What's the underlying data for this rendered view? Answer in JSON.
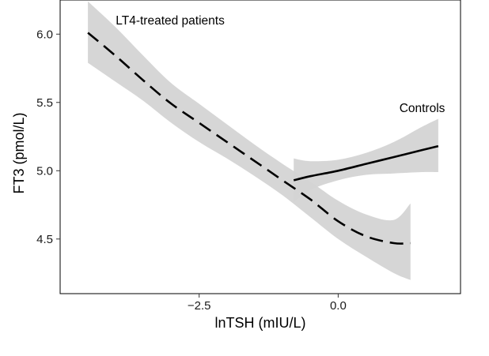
{
  "chart_data": {
    "type": "line",
    "xlabel": "lnTSH (mIU/L)",
    "ylabel": "FT3 (pmol/L)",
    "xlim": [
      -5.0,
      2.2
    ],
    "ylim": [
      4.1,
      6.25
    ],
    "x_ticks": [
      {
        "value": -2.5,
        "label": "−2.5"
      },
      {
        "value": 0.0,
        "label": "0.0"
      }
    ],
    "y_ticks": [
      {
        "value": 4.5,
        "label": "4.5"
      },
      {
        "value": 5.0,
        "label": "5.0"
      },
      {
        "value": 5.5,
        "label": "5.5"
      },
      {
        "value": 6.0,
        "label": "6.0"
      }
    ],
    "grid": false,
    "band_color": "#d4d4d4",
    "line_color": "#000000",
    "annotations": [
      {
        "text": "LT4-treated patients",
        "x": -4.0,
        "y": 6.07
      },
      {
        "text": "Controls",
        "x": 1.1,
        "y": 5.43
      }
    ],
    "series": [
      {
        "name": "LT4-treated patients",
        "style": "dashed",
        "x": [
          -4.5,
          -4.0,
          -3.5,
          -3.0,
          -2.5,
          -2.0,
          -1.5,
          -1.0,
          -0.5,
          0.0,
          0.5,
          1.0,
          1.3
        ],
        "y": [
          6.01,
          5.84,
          5.66,
          5.49,
          5.35,
          5.21,
          5.07,
          4.93,
          4.79,
          4.63,
          4.52,
          4.47,
          4.47
        ],
        "lower": [
          5.79,
          5.65,
          5.51,
          5.35,
          5.21,
          5.09,
          4.96,
          4.82,
          4.66,
          4.5,
          4.37,
          4.25,
          4.2
        ],
        "upper": [
          6.24,
          6.05,
          5.84,
          5.64,
          5.49,
          5.34,
          5.19,
          5.05,
          4.92,
          4.78,
          4.68,
          4.64,
          4.76
        ]
      },
      {
        "name": "Controls",
        "style": "solid",
        "x": [
          -0.8,
          -0.5,
          0.0,
          0.5,
          1.0,
          1.5,
          1.8
        ],
        "y": [
          4.93,
          4.96,
          5.0,
          5.05,
          5.1,
          5.15,
          5.18
        ],
        "lower": [
          4.77,
          4.86,
          4.93,
          4.97,
          4.98,
          4.99,
          4.99
        ],
        "upper": [
          5.09,
          5.07,
          5.08,
          5.13,
          5.21,
          5.32,
          5.38
        ]
      }
    ]
  }
}
